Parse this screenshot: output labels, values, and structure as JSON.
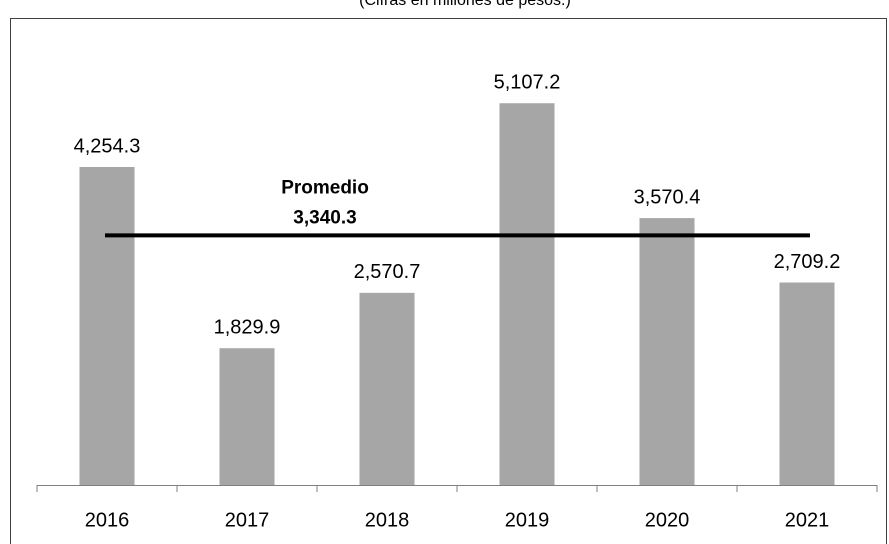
{
  "chart_data": {
    "type": "bar",
    "subtitle": "(Cifras en millones de pesos.)",
    "categories": [
      "2016",
      "2017",
      "2018",
      "2019",
      "2020",
      "2021"
    ],
    "values": [
      4254.3,
      1829.9,
      2570.7,
      5107.2,
      3570.4,
      2709.2
    ],
    "value_labels": [
      "4,254.3",
      "1,829.9",
      "2,570.7",
      "5,107.2",
      "3,570.4",
      "2,709.2"
    ],
    "color": "#a6a6a6",
    "ylim": [
      0,
      6000
    ],
    "average": {
      "label": "Promedio",
      "value": 3340.3,
      "value_label": "3,340.3",
      "color": "#000000"
    }
  }
}
